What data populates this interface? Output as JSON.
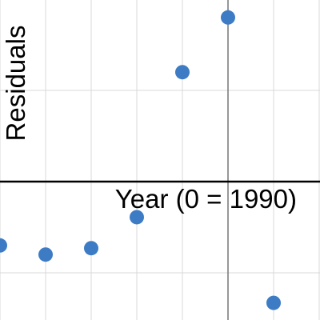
{
  "chart_data": {
    "type": "scatter",
    "xlabel": "Year (0 = 1990)",
    "ylabel": "Residuals",
    "xlim": [
      -5,
      2
    ],
    "ylim": [
      -1.5,
      2
    ],
    "grid": true,
    "points": [
      {
        "x": -5,
        "y": -0.7
      },
      {
        "x": -4,
        "y": -0.8
      },
      {
        "x": -3,
        "y": -0.73
      },
      {
        "x": -2,
        "y": -0.39
      },
      {
        "x": -1,
        "y": 1.2
      },
      {
        "x": 0,
        "y": 1.8
      },
      {
        "x": 1,
        "y": -1.33
      }
    ],
    "colors": {
      "point": "#3d7cc4",
      "grid": "#d9d9d9",
      "axis": "#000000",
      "y_axis": "#777777"
    }
  }
}
